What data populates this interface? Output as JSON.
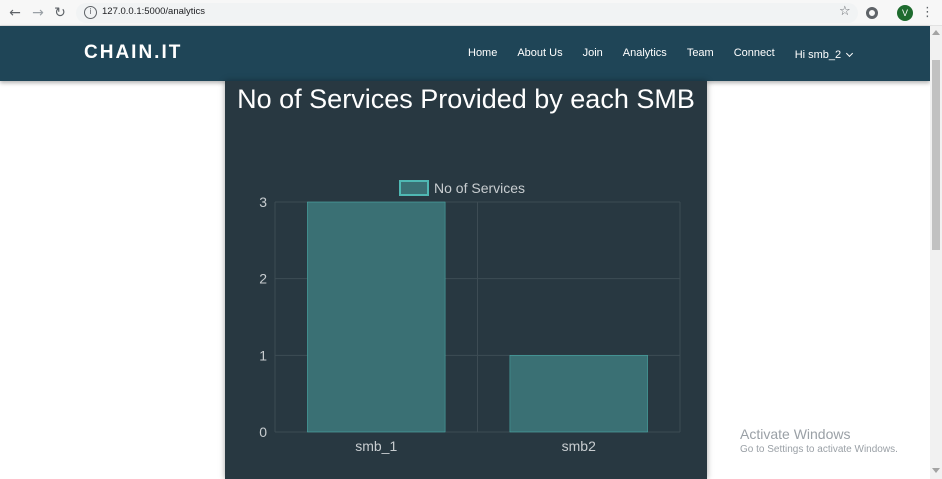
{
  "browser": {
    "url": "127.0.0.1:5000/analytics",
    "back_glyph": "←",
    "forward_glyph": "→",
    "reload_glyph": "↻",
    "info_glyph": "i",
    "star_glyph": "☆",
    "profile_initial": "V",
    "menu_glyph": "⋮"
  },
  "navbar": {
    "brand": "CHAIN.IT",
    "links": [
      "Home",
      "About Us",
      "Join",
      "Analytics",
      "Team",
      "Connect"
    ],
    "user_label": "Hi smb_2"
  },
  "chart_title": "No of Services Provided by each SMB",
  "chart_data": {
    "type": "bar",
    "title": "No of Services Provided by each SMB",
    "categories": [
      "smb_1",
      "smb2"
    ],
    "series": [
      {
        "name": "No of Services",
        "values": [
          3,
          1
        ]
      }
    ],
    "ylim": [
      0,
      3
    ],
    "yticks": [
      "0",
      "1",
      "2",
      "3"
    ],
    "grid": true,
    "legend": "top",
    "colors": {
      "bar_fill": "#3a7074",
      "bar_border": "#4fb8b3",
      "grid": "#3d4c54",
      "text": "#c8cdd0"
    }
  },
  "watermark": {
    "title": "Activate Windows",
    "subtitle": "Go to Settings to activate Windows."
  }
}
